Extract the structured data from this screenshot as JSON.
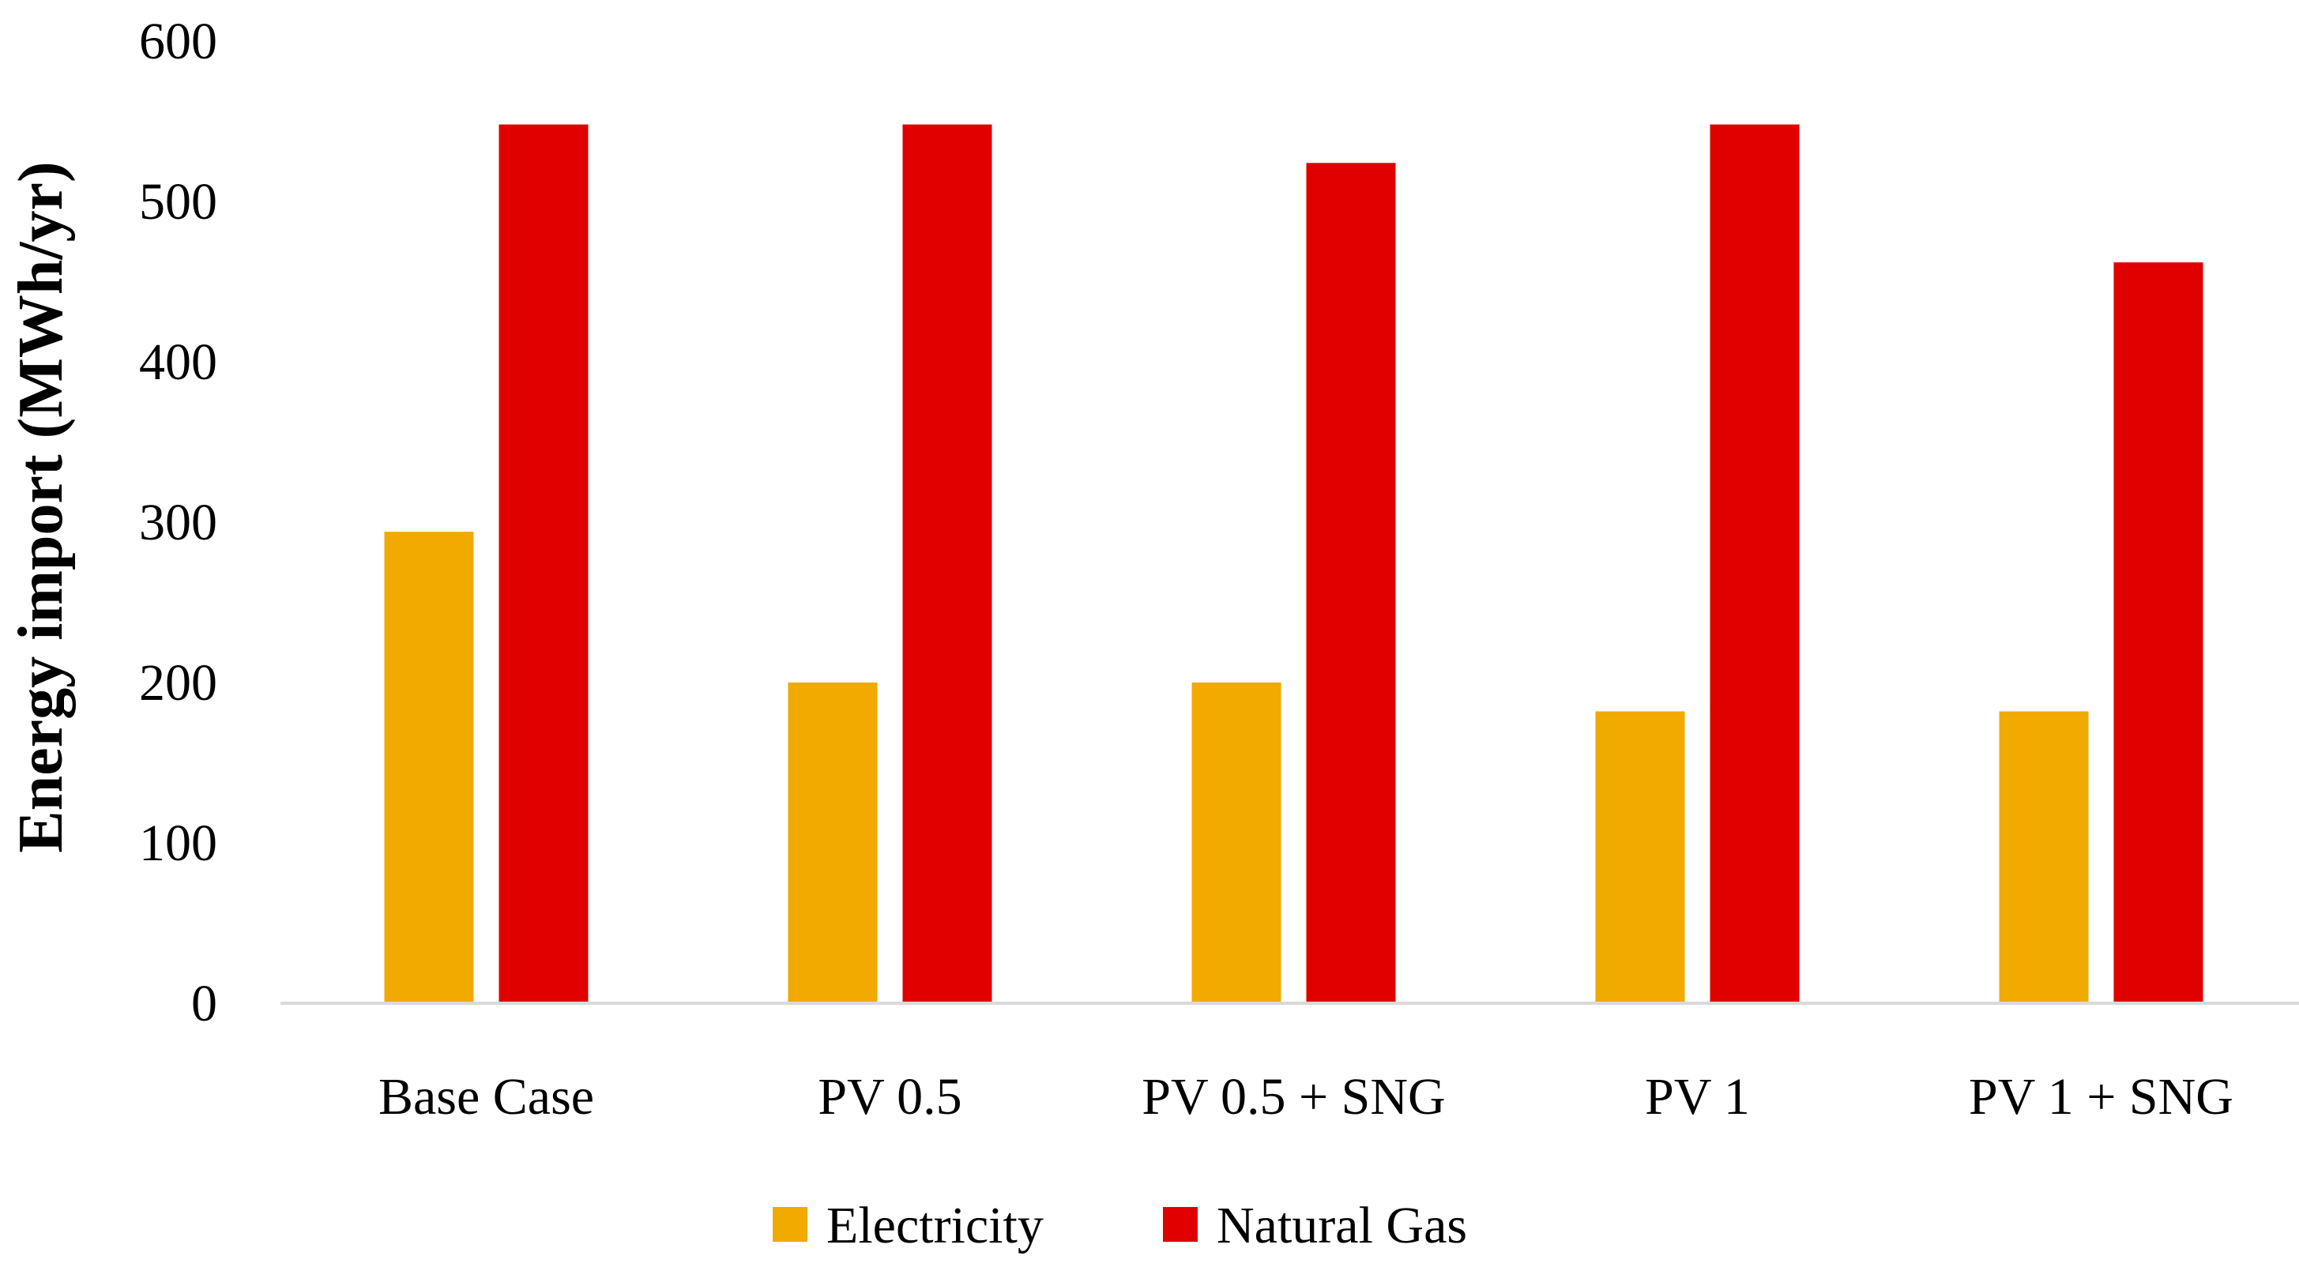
{
  "chart_data": {
    "type": "bar",
    "title": "",
    "xlabel": "",
    "ylabel": "Energy import (MWh/yr)",
    "ylim": [
      0,
      600
    ],
    "yticks": [
      0,
      100,
      200,
      300,
      400,
      500,
      600
    ],
    "grid": false,
    "legend_position": "bottom",
    "categories": [
      "Base Case",
      "PV 0.5",
      "PV 0.5 + SNG",
      "PV 1",
      "PV 1 + SNG"
    ],
    "series": [
      {
        "name": "Electricity",
        "color": "#F0AA00",
        "values": [
          294,
          200,
          200,
          182,
          182
        ]
      },
      {
        "name": "Natural Gas",
        "color": "#E00000",
        "values": [
          548,
          548,
          524,
          548,
          462
        ]
      }
    ]
  }
}
